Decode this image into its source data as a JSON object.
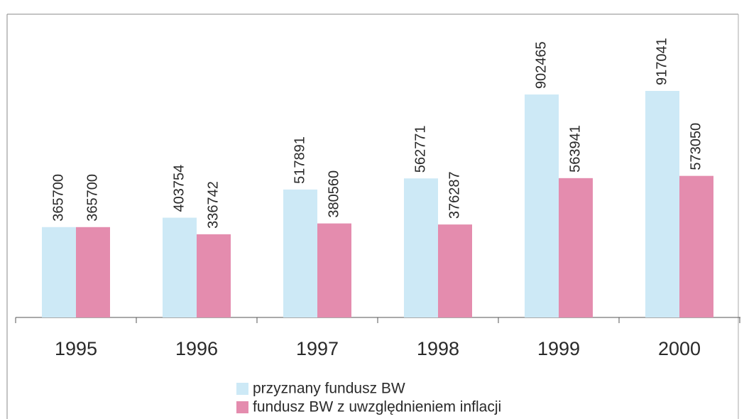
{
  "chart_data": {
    "type": "bar",
    "categories": [
      "1995",
      "1996",
      "1997",
      "1998",
      "1999",
      "2000"
    ],
    "series": [
      {
        "name": "przyznany fundusz BW",
        "color": "#cde9f6",
        "values": [
          365700,
          403754,
          517891,
          562771,
          902465,
          917041
        ]
      },
      {
        "name": "fundusz BW z uwzględnieniem inflacji",
        "color": "#e48cae",
        "values": [
          365700,
          336742,
          380560,
          376287,
          563941,
          573050
        ]
      }
    ]
  }
}
